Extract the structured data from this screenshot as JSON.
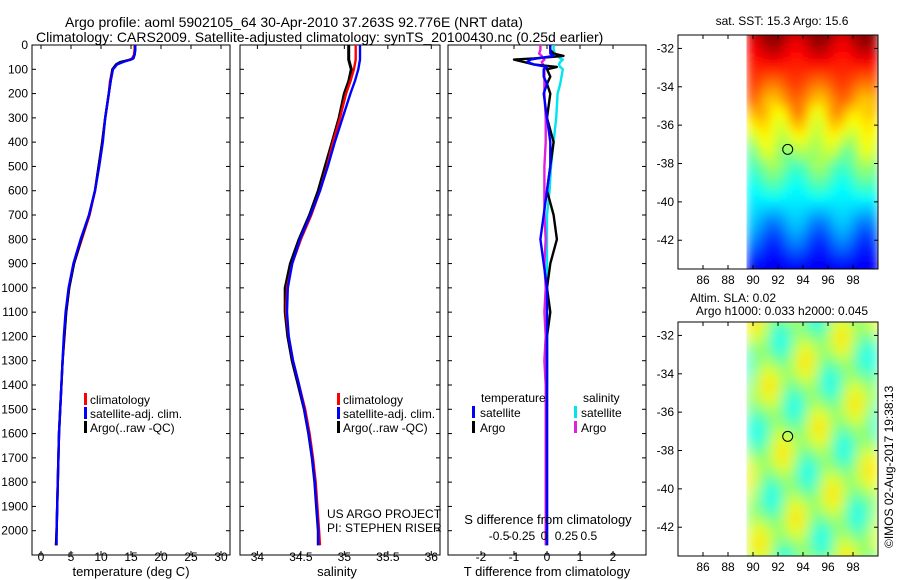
{
  "header": {
    "title_line1": "Argo profile: aoml 5902105_64 30-Apr-2010 37.263S 92.776E (NRT data)",
    "title_line2": "Climatology: CARS2009. Satellite-adjusted climatology: synTS_20100430.nc (0.25d earlier)"
  },
  "annotations": {
    "project_line1": "US ARGO PROJECT",
    "project_line2": "PI: STEPHEN RISER",
    "imos_stamp": "©IMOS 02-Aug-2017 19:38:13"
  },
  "colors": {
    "climatology": "#ff0000",
    "satellite": "#0000ff",
    "argo": "#000000",
    "salinity_satellite": "#00e5ee",
    "salinity_argo": "#e020e0"
  },
  "chart_data": [
    {
      "type": "line",
      "id": "temperature",
      "xlabel": "temperature (deg C)",
      "ylabel": "",
      "xlim": [
        -1.5,
        31.5
      ],
      "ylim": [
        2100,
        0
      ],
      "xticks": [
        0,
        5,
        10,
        15,
        20,
        25,
        30
      ],
      "yticks": [
        0,
        100,
        200,
        300,
        400,
        500,
        600,
        700,
        800,
        900,
        1000,
        1100,
        1200,
        1300,
        1400,
        1500,
        1600,
        1700,
        1800,
        1900,
        2000
      ],
      "legend": [
        "climatology",
        "satellite-adj. clim.",
        "Argo(..raw -QC)"
      ],
      "legend_position": "lower-right",
      "depth": [
        0,
        20,
        40,
        55,
        60,
        70,
        80,
        100,
        150,
        200,
        300,
        400,
        500,
        600,
        700,
        800,
        900,
        1000,
        1100,
        1200,
        1300,
        1400,
        1500,
        1600,
        1700,
        1800,
        1900,
        2000,
        2060
      ],
      "series": [
        {
          "name": "climatology",
          "values": [
            15.6,
            15.6,
            15.5,
            15.2,
            14.8,
            13.5,
            12.6,
            11.9,
            11.5,
            11.3,
            10.7,
            10.2,
            9.6,
            9.0,
            8.1,
            6.8,
            5.5,
            4.7,
            4.2,
            3.9,
            3.6,
            3.4,
            3.2,
            3.0,
            2.9,
            2.8,
            2.7,
            2.6,
            2.5
          ]
        },
        {
          "name": "satellite",
          "values": [
            15.7,
            15.7,
            15.6,
            15.3,
            14.9,
            13.7,
            12.7,
            12.0,
            11.6,
            11.3,
            10.7,
            10.3,
            9.7,
            9.0,
            8.0,
            6.6,
            5.4,
            4.6,
            4.1,
            3.8,
            3.6,
            3.4,
            3.2,
            3.0,
            2.9,
            2.8,
            2.7,
            2.6,
            2.6
          ]
        },
        {
          "name": "argo",
          "values": [
            15.7,
            15.7,
            15.6,
            15.4,
            15.0,
            13.2,
            12.5,
            11.9,
            11.6,
            11.3,
            10.7,
            10.2,
            9.6,
            9.0,
            8.0,
            6.7,
            5.5,
            4.7,
            4.2,
            3.9,
            3.6,
            3.4,
            3.2,
            3.0,
            2.9,
            2.8,
            2.7,
            2.6,
            2.5
          ]
        }
      ]
    },
    {
      "type": "line",
      "id": "salinity",
      "xlabel": "salinity",
      "xlim": [
        33.8,
        36.1
      ],
      "ylim": [
        2100,
        0
      ],
      "xticks": [
        34,
        34.5,
        35,
        35.5,
        36
      ],
      "yticks": [
        0,
        100,
        200,
        300,
        400,
        500,
        600,
        700,
        800,
        900,
        1000,
        1100,
        1200,
        1300,
        1400,
        1500,
        1600,
        1700,
        1800,
        1900,
        2000
      ],
      "legend": [
        "climatology",
        "satellite-adj. clim.",
        "Argo(..raw -QC)"
      ],
      "legend_position": "lower-right",
      "depth": [
        0,
        30,
        60,
        100,
        150,
        200,
        300,
        400,
        500,
        600,
        700,
        800,
        900,
        1000,
        1100,
        1200,
        1300,
        1400,
        1500,
        1600,
        1700,
        1800,
        1900,
        2000,
        2060
      ],
      "series": [
        {
          "name": "climatology",
          "values": [
            35.13,
            35.13,
            35.13,
            35.11,
            35.07,
            35.02,
            34.95,
            34.87,
            34.8,
            34.72,
            34.62,
            34.5,
            34.4,
            34.34,
            34.33,
            34.36,
            34.41,
            34.48,
            34.55,
            34.6,
            34.64,
            34.67,
            34.69,
            34.71,
            34.72
          ]
        },
        {
          "name": "satellite",
          "values": [
            35.18,
            35.18,
            35.18,
            35.16,
            35.12,
            35.07,
            34.98,
            34.89,
            34.81,
            34.72,
            34.61,
            34.49,
            34.4,
            34.35,
            34.34,
            34.36,
            34.41,
            34.48,
            34.54,
            34.59,
            34.63,
            34.66,
            34.68,
            34.7,
            34.7
          ]
        },
        {
          "name": "argo",
          "values": [
            35.05,
            35.05,
            35.05,
            35.08,
            35.05,
            35.0,
            34.94,
            34.86,
            34.78,
            34.7,
            34.6,
            34.48,
            34.38,
            34.32,
            34.32,
            34.35,
            34.4,
            34.47,
            34.54,
            34.59,
            34.63,
            34.66,
            34.68,
            34.7,
            34.7
          ]
        }
      ]
    },
    {
      "type": "line",
      "id": "difference",
      "xlabel": "T difference from climatology",
      "xlabel_top": "S difference from climatology",
      "xlim": [
        -3.0,
        3.0
      ],
      "ylim": [
        2100,
        0
      ],
      "xticks": [
        -2,
        -1,
        0,
        1,
        2
      ],
      "xticks_top": [
        -0.5,
        -0.25,
        0,
        0.25,
        0.5
      ],
      "yticks": [
        0,
        100,
        200,
        300,
        400,
        500,
        600,
        700,
        800,
        900,
        1000,
        1100,
        1200,
        1300,
        1400,
        1500,
        1600,
        1700,
        1800,
        1900,
        2000
      ],
      "legend_title_left": "temperature",
      "legend_title_right": "salinity",
      "legend": [
        "satellite",
        "Argo",
        "satellite",
        "Argo"
      ],
      "depth": [
        0,
        20,
        35,
        45,
        55,
        60,
        70,
        80,
        90,
        100,
        130,
        160,
        200,
        300,
        400,
        500,
        600,
        700,
        800,
        900,
        1000,
        1100,
        1200,
        1300,
        1400,
        1500,
        1600,
        1700,
        1800,
        1900,
        2000,
        2060
      ],
      "series": [
        {
          "name": "T satellite",
          "values": [
            0.1,
            0.1,
            0.1,
            0.2,
            -0.3,
            -0.5,
            -0.6,
            -0.4,
            0.0,
            -0.1,
            -0.1,
            0.0,
            -0.1,
            0.0,
            0.1,
            0.1,
            0.0,
            -0.1,
            -0.2,
            -0.1,
            0.0,
            0.0,
            0.0,
            0.0,
            0.0,
            0.0,
            0.0,
            0.0,
            0.0,
            0.0,
            0.0,
            0.0
          ]
        },
        {
          "name": "T argo",
          "values": [
            0.1,
            0.1,
            0.2,
            0.5,
            -0.4,
            -1.0,
            -0.7,
            -0.4,
            0.3,
            0.0,
            0.1,
            0.0,
            0.1,
            0.0,
            0.2,
            0.1,
            0.0,
            0.2,
            0.3,
            0.1,
            0.0,
            0.1,
            0.0,
            0.0,
            0.0,
            0.0,
            0.0,
            0.0,
            0.0,
            0.0,
            0.0,
            0.0
          ]
        },
        {
          "name": "S satellite",
          "values": [
            0.05,
            0.05,
            0.06,
            0.08,
            0.1,
            0.12,
            0.1,
            0.09,
            0.1,
            0.12,
            0.11,
            0.1,
            0.08,
            0.07,
            0.05,
            0.03,
            0.02,
            0.0,
            0.0,
            0.0,
            0.0,
            0.0,
            0.0,
            0.0,
            0.0,
            -0.01,
            -0.01,
            -0.01,
            -0.01,
            -0.01,
            -0.01,
            -0.01
          ]
        },
        {
          "name": "S argo",
          "values": [
            -0.05,
            -0.05,
            -0.06,
            -0.04,
            -0.03,
            -0.02,
            -0.04,
            -0.03,
            -0.02,
            -0.02,
            -0.02,
            -0.02,
            -0.02,
            -0.01,
            -0.01,
            -0.02,
            -0.02,
            -0.02,
            -0.01,
            -0.02,
            -0.01,
            -0.02,
            -0.01,
            -0.02,
            -0.01,
            -0.01,
            -0.01,
            -0.01,
            -0.01,
            -0.01,
            -0.01,
            -0.01
          ]
        }
      ]
    },
    {
      "type": "heatmap",
      "id": "sst_map",
      "title": "sat. SST: 15.3 Argo: 15.6",
      "xlim": [
        84,
        100
      ],
      "ylim": [
        -43.5,
        -31.3
      ],
      "xticks": [
        86,
        88,
        90,
        92,
        94,
        96,
        98
      ],
      "yticks": [
        -32,
        -34,
        -36,
        -38,
        -40,
        -42
      ],
      "data_xlim": [
        90,
        99.5
      ],
      "marker": {
        "lon": 92.776,
        "lat": -37.263
      }
    },
    {
      "type": "heatmap",
      "id": "sla_map",
      "title_line1": "Altim. SLA: 0.02",
      "title_line2": "Argo h1000: 0.033 h2000: 0.045",
      "xlim": [
        84,
        100
      ],
      "ylim": [
        -43.5,
        -31.3
      ],
      "xticks": [
        86,
        88,
        90,
        92,
        94,
        96,
        98
      ],
      "yticks": [
        -32,
        -34,
        -36,
        -38,
        -40,
        -42
      ],
      "data_xlim": [
        90,
        99.5
      ],
      "marker": {
        "lon": 92.776,
        "lat": -37.263
      }
    }
  ]
}
